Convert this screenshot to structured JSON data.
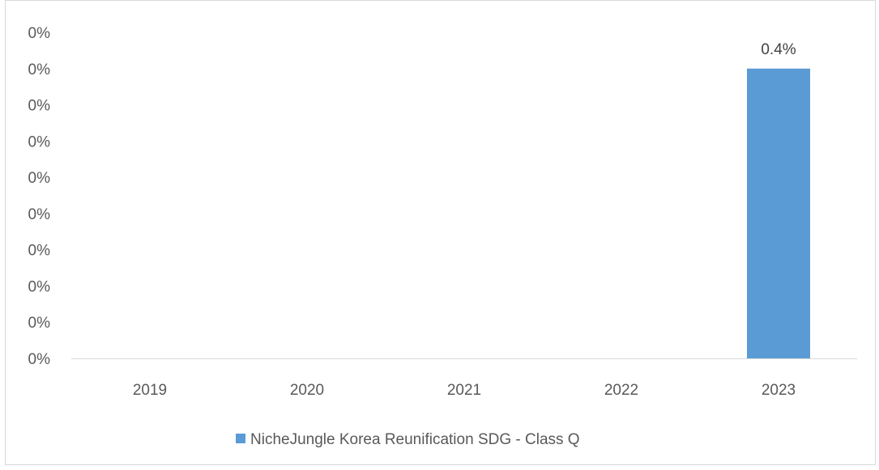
{
  "chart_data": {
    "type": "bar",
    "categories": [
      "2019",
      "2020",
      "2021",
      "2022",
      "2023"
    ],
    "series": [
      {
        "name": "NicheJungle Korea Reunification SDG - Class Q",
        "values": [
          0,
          0,
          0,
          0,
          0.4
        ],
        "color": "#5b9bd5",
        "data_labels": [
          "",
          "",
          "",
          "",
          "0.4%"
        ]
      }
    ],
    "y_ticks": [
      "0%",
      "0%",
      "0%",
      "0%",
      "0%",
      "0%",
      "0%",
      "0%",
      "0%",
      "0%"
    ],
    "ylim": [
      0,
      0.45
    ],
    "grid": false,
    "legend": "bottom",
    "axis_color": "#d9d9d9"
  }
}
